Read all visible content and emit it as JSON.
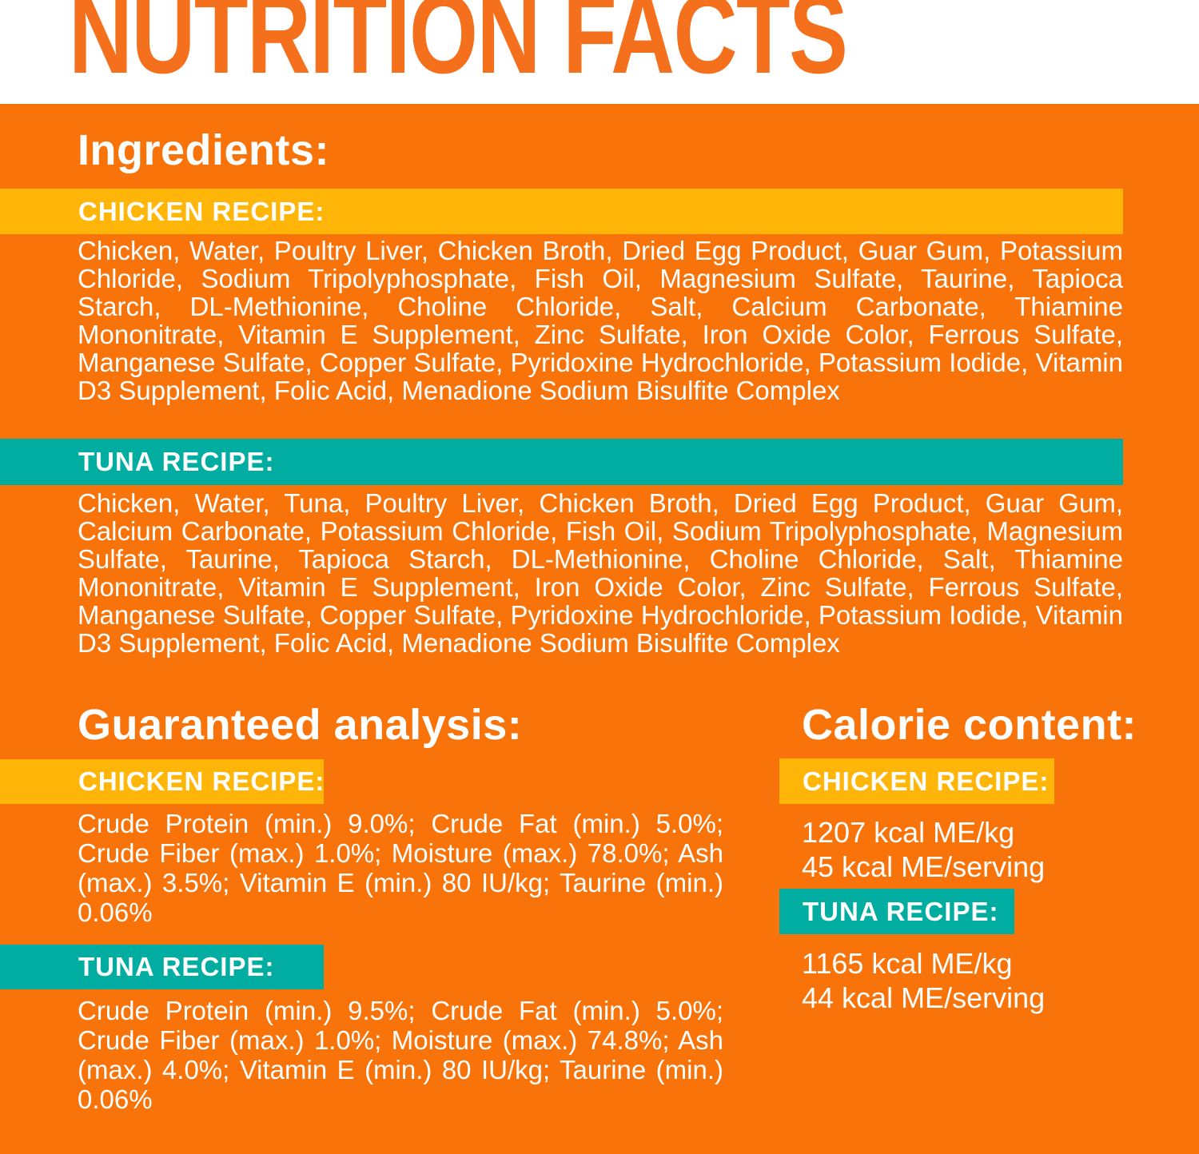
{
  "header": {
    "title": "NUTRITION FACTS"
  },
  "colors": {
    "background": "#F8730A",
    "band_yellow": "#FFB608",
    "band_teal": "#00ADA0",
    "title_orange": "#F4701D",
    "text": "#FFFFFF"
  },
  "ingredients": {
    "heading": "Ingredients:",
    "recipes": [
      {
        "label": "CHICKEN RECIPE:",
        "band_color": "yellow",
        "text": "Chicken, Water, Poultry Liver, Chicken Broth, Dried Egg Product, Guar Gum, Potassium Chloride, Sodium Tripolyphosphate, Fish Oil, Magnesium Sulfate, Taurine, Tapioca Starch, DL-Methionine, Choline Chloride, Salt, Calcium Carbonate, Thiamine Mononitrate, Vitamin E Supplement, Zinc Sulfate, Iron Oxide Color, Ferrous Sulfate, Manganese Sulfate, Copper Sulfate, Pyridoxine Hydrochloride, Potassium Iodide, Vitamin D3 Supplement, Folic Acid, Menadione Sodium Bisulfite Complex"
      },
      {
        "label": "TUNA RECIPE:",
        "band_color": "teal",
        "text": "Chicken, Water, Tuna, Poultry Liver, Chicken Broth, Dried Egg Product, Guar Gum, Calcium Carbonate, Potassium Chloride, Fish Oil, Sodium Tripolyphosphate, Magnesium Sulfate, Taurine, Tapioca Starch, DL-Methionine, Choline Chloride, Salt, Thiamine Mononitrate, Vitamin E Supplement, Iron Oxide Color, Zinc Sulfate, Ferrous Sulfate, Manganese Sulfate, Copper Sulfate, Pyridoxine Hydrochloride, Potassium Iodide, Vitamin D3 Supplement, Folic Acid, Menadione Sodium Bisulfite Complex"
      }
    ]
  },
  "guaranteed_analysis": {
    "heading": "Guaranteed analysis:",
    "recipes": [
      {
        "label": "CHICKEN RECIPE:",
        "band_color": "yellow",
        "text": "Crude Protein (min.) 9.0%; Crude Fat (min.) 5.0%; Crude Fiber (max.) 1.0%; Moisture (max.) 78.0%; Ash (max.) 3.5%; Vitamin E (min.) 80 IU/kg; Taurine (min.) 0.06%"
      },
      {
        "label": "TUNA RECIPE:",
        "band_color": "teal",
        "text": "Crude Protein (min.) 9.5%; Crude Fat (min.) 5.0%; Crude Fiber (max.) 1.0%; Moisture (max.) 74.8%; Ash (max.) 4.0%; Vitamin E (min.) 80 IU/kg; Taurine (min.) 0.06%"
      }
    ]
  },
  "calorie_content": {
    "heading": "Calorie content:",
    "recipes": [
      {
        "label": "CHICKEN RECIPE:",
        "band_color": "yellow",
        "kcal_per_kg": "1207 kcal ME/kg",
        "kcal_per_serving": "45 kcal ME/serving"
      },
      {
        "label": "TUNA RECIPE:",
        "band_color": "teal",
        "kcal_per_kg": "1165 kcal ME/kg",
        "kcal_per_serving": "44 kcal ME/serving"
      }
    ]
  }
}
